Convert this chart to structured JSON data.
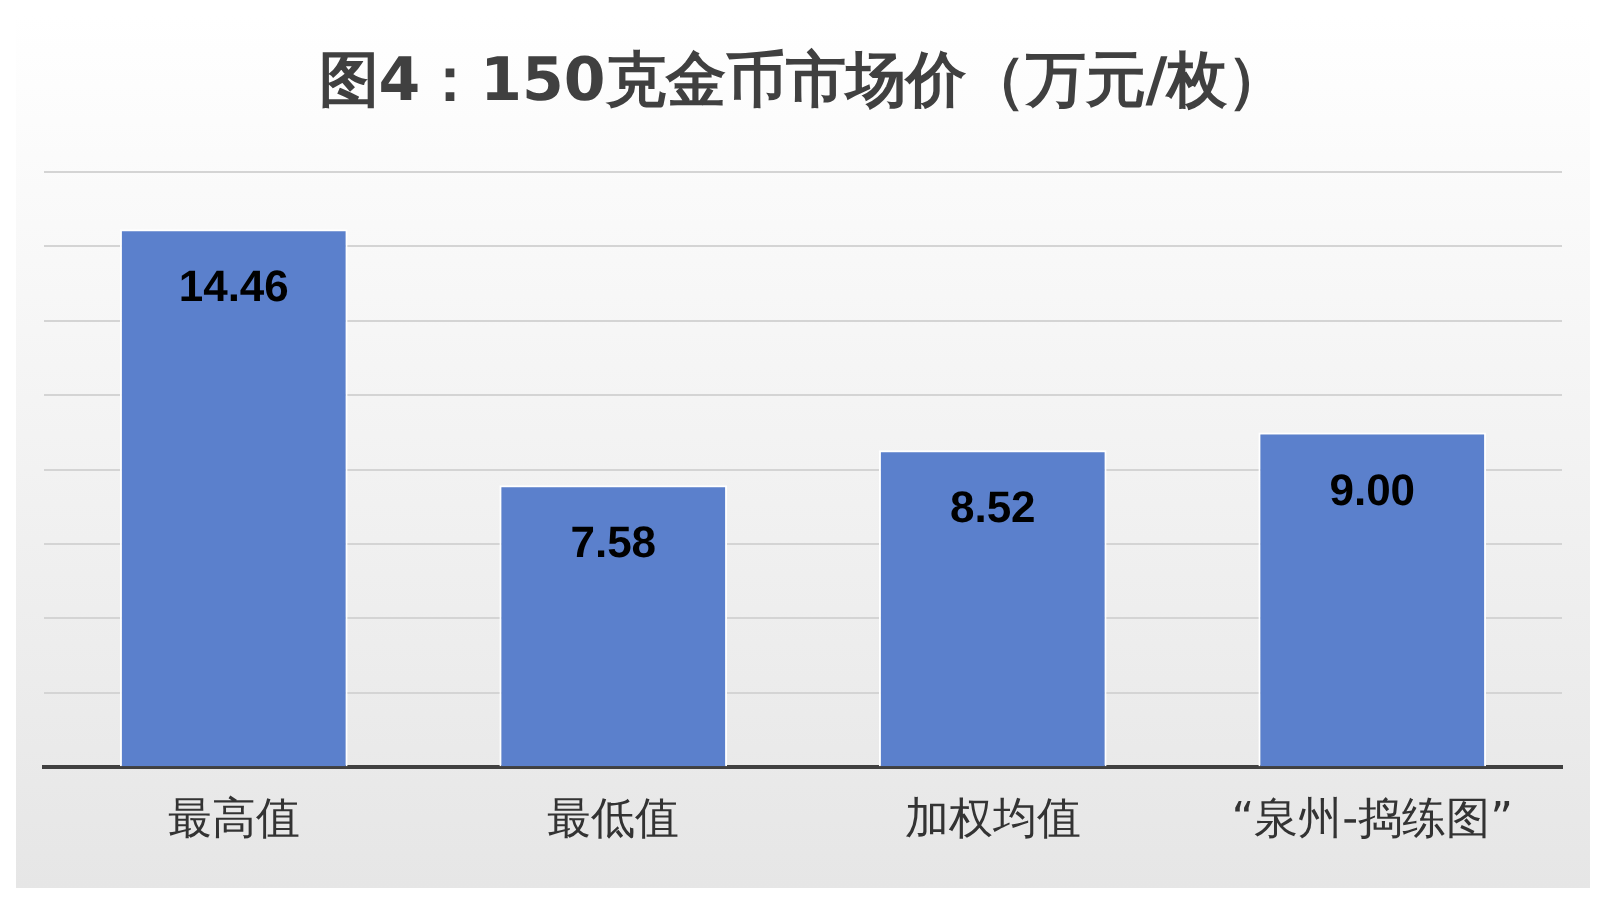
{
  "chart_data": {
    "type": "bar",
    "title": "图4：150克金币市场价（万元/枚）",
    "categories": [
      "最高值",
      "最低值",
      "加权均值",
      "“泉州-捣练图”"
    ],
    "values": [
      14.46,
      7.58,
      8.52,
      9.0
    ],
    "color": "#5b80cc",
    "ylim": [
      0,
      16
    ],
    "yticks": [
      {
        "value": 0,
        "label": null
      },
      {
        "value": 2,
        "label": null
      },
      {
        "value": 4,
        "label": null
      },
      {
        "value": 6,
        "label": null
      },
      {
        "value": 8,
        "label": null
      },
      {
        "value": 10,
        "label": null
      },
      {
        "value": 12,
        "label": null
      },
      {
        "value": 14,
        "label": null
      },
      {
        "value": 16,
        "label": null
      }
    ],
    "value_labels": [
      "14.46",
      "7.58",
      "8.52",
      "9.00"
    ],
    "grid": "y",
    "tick_labels": "x",
    "legend": false
  }
}
